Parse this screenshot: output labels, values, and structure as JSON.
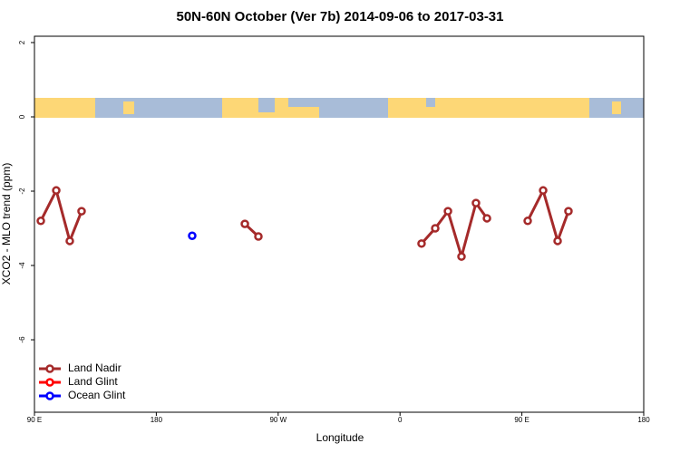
{
  "chart_data": {
    "type": "line",
    "title": "50N-60N October (Ver 7b)   2014-09-06 to 2017-03-31",
    "x_label": "Longitude",
    "y_label": "XCO2 - MLO trend (ppm)",
    "xlim": [
      90,
      540
    ],
    "xticks": [
      {
        "value": 90,
        "label": "90 E"
      },
      {
        "value": 180,
        "label": "180"
      },
      {
        "value": 270,
        "label": "90 W"
      },
      {
        "value": 360,
        "label": "0"
      },
      {
        "value": 450,
        "label": "90 E"
      },
      {
        "value": 540,
        "label": "180"
      }
    ],
    "ylim": [
      -7.95,
      2.17
    ],
    "yticks": [
      2,
      0,
      -2,
      -4,
      -6
    ],
    "legend": "bottom-left",
    "series": [
      {
        "name": "Land Nadir",
        "color": "#a52a2a",
        "x": [
          94.7,
          106.1,
          116.1,
          124.8,
          null,
          245.4,
          255.4,
          null,
          375.9,
          386.0,
          395.4,
          405.4,
          416.1,
          424.2,
          null,
          454.3,
          465.7,
          476.4,
          484.4
        ],
        "values": [
          -2.8,
          -1.98,
          -3.34,
          -2.54,
          null,
          -2.88,
          -3.22,
          null,
          -3.41,
          -3.0,
          -2.54,
          -3.76,
          -2.32,
          -2.73,
          null,
          -2.8,
          -1.98,
          -3.34,
          -2.54
        ]
      },
      {
        "name": "Land Glint",
        "color": "#ff0000",
        "x": [],
        "values": []
      },
      {
        "name": "Ocean Glint",
        "color": "#0000ff",
        "x": [
          206.5
        ],
        "values": [
          -3.2
        ]
      }
    ]
  }
}
